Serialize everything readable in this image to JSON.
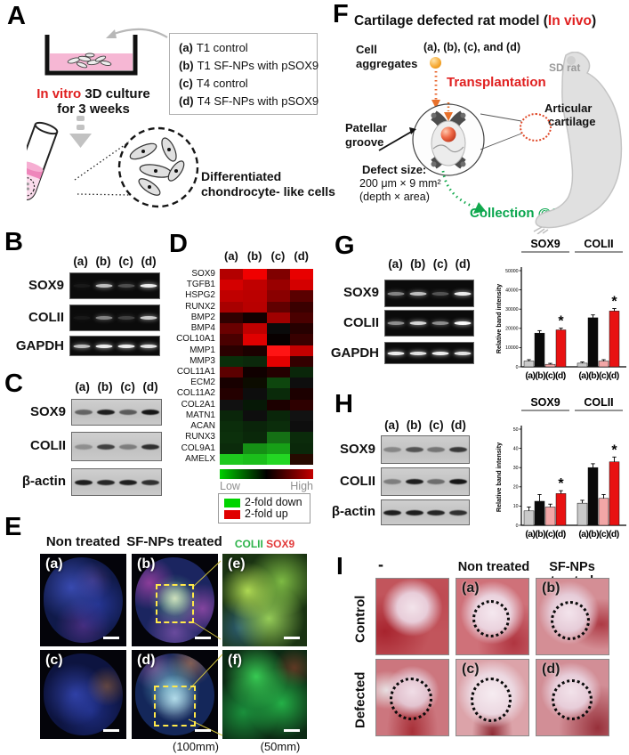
{
  "panelA": {
    "label": "A",
    "legend": [
      {
        "key": "(a)",
        "text": "T1 control"
      },
      {
        "key": "(b)",
        "text": "T1 SF-NPs with pSOX9"
      },
      {
        "key": "(c)",
        "text": "T4 control"
      },
      {
        "key": "(d)",
        "text": "T4 SF-NPs with pSOX9"
      }
    ],
    "invitro_red": "In vitro",
    "invitro_black": " 3D culture",
    "culture_line2": "for 3 weeks",
    "diff1": "Differentiated",
    "diff2": "chondrocyte- like cells"
  },
  "panelB": {
    "label": "B",
    "lanes": [
      "(a)",
      "(b)",
      "(c)",
      "(d)"
    ],
    "rows": [
      {
        "name": "SOX9",
        "bands": [
          0.06,
          0.75,
          0.28,
          0.95
        ]
      },
      {
        "name": "COLII",
        "bands": [
          0.05,
          0.5,
          0.22,
          0.8
        ]
      },
      {
        "name": "GAPDH",
        "bands": [
          0.75,
          0.95,
          0.95,
          0.9
        ]
      }
    ]
  },
  "panelC": {
    "label": "C",
    "lanes": [
      "(a)",
      "(b)",
      "(c)",
      "(d)"
    ],
    "rows": [
      {
        "name": "SOX9",
        "bands": [
          0.55,
          0.95,
          0.6,
          1
        ]
      },
      {
        "name": "COLII",
        "bands": [
          0.3,
          0.75,
          0.4,
          0.85
        ]
      },
      {
        "name": "β-actin",
        "bands": [
          0.95,
          0.9,
          0.95,
          0.85
        ]
      }
    ]
  },
  "panelD": {
    "label": "D",
    "lanes": [
      "(a)",
      "(b)",
      "(c)",
      "(d)"
    ],
    "genes": [
      "SOX9",
      "TGFB1",
      "HSPG2",
      "RUNX2",
      "BMP2",
      "BMP4",
      "COL10A1",
      "MMP1",
      "MMP3",
      "COL11A1",
      "ECM2",
      "COL11A2",
      "COL2A1",
      "MATN1",
      "ACAN",
      "RUNX3",
      "COL9A1",
      "AMELX"
    ],
    "cells": [
      [
        "#b30000",
        "#f00000",
        "#800000",
        "#e80000"
      ],
      [
        "#d40000",
        "#c00000",
        "#990000",
        "#d40000"
      ],
      [
        "#c00000",
        "#bb0000",
        "#8a0000",
        "#5a0000"
      ],
      [
        "#a80000",
        "#b80000",
        "#600000",
        "#3a0000"
      ],
      [
        "#300000",
        "#120000",
        "#a00000",
        "#4a0000"
      ],
      [
        "#6a0000",
        "#c00000",
        "#0a0a0a",
        "#260000"
      ],
      [
        "#4a0000",
        "#e00000",
        "#080000",
        "#380000"
      ],
      [
        "#2a0000",
        "#1c0000",
        "#ff1414",
        "#c40000"
      ],
      [
        "#0a2e0a",
        "#0b280b",
        "#e60000",
        "#330000"
      ],
      [
        "#5c0000",
        "#100000",
        "#240000",
        "#0a260a"
      ],
      [
        "#180000",
        "#0c0c00",
        "#0e460e",
        "#0e0e0e"
      ],
      [
        "#240000",
        "#0d0d0d",
        "#0a2a0a",
        "#1c0000"
      ],
      [
        "#111111",
        "#061806",
        "#1c0000",
        "#2e0000"
      ],
      [
        "#0a260a",
        "#0e0e0e",
        "#0a260a",
        "#121212"
      ],
      [
        "#0b2d0b",
        "#0a240a",
        "#0b2d0b",
        "#0e0e0e"
      ],
      [
        "#0c300c",
        "#0a280a",
        "#157015",
        "#0b2b0b"
      ],
      [
        "#0b2b0b",
        "#159015",
        "#17a017",
        "#0a280a"
      ],
      [
        "#1ec81e",
        "#1bbf1b",
        "#23d723",
        "#260a00"
      ]
    ],
    "scale_low": "Low",
    "scale_high": "High",
    "legend_down": "2-fold down",
    "legend_up": "2-fold up"
  },
  "panelE": {
    "label": "E",
    "col1": "Non treated",
    "col2": "SF-NPs treated",
    "stain1": "COLII",
    "stain2": "SOX9",
    "images": [
      "(a)",
      "(b)",
      "(e)",
      "(c)",
      "(d)",
      "(f)"
    ],
    "scale1": "(100mm)",
    "scale2": "(50mm)"
  },
  "panelF": {
    "label": "F",
    "title_pre": "Cartilage defected rat model (",
    "title_red": "In vivo",
    "title_post": ")",
    "cell1": "Cell",
    "cell2": "aggregates",
    "groups": "(a), (b), (c), and (d)",
    "transplant": "Transplantation",
    "sd_rat": "SD rat",
    "artic1": "Articular",
    "artic2": "cartilage",
    "pat1": "Patellar",
    "pat2": "groove",
    "defect_title": "Defect size:",
    "defect1": "200 μm × 9 mm²",
    "defect2": "(depth × area)",
    "collection": "Collection @6W"
  },
  "panelG": {
    "label": "G",
    "lanes": [
      "(a)",
      "(b)",
      "(c)",
      "(d)"
    ],
    "rows": [
      {
        "name": "SOX9",
        "bands": [
          0.5,
          0.75,
          0.3,
          0.95
        ]
      },
      {
        "name": "COLII",
        "bands": [
          0.55,
          0.85,
          0.55,
          1
        ]
      },
      {
        "name": "GAPDH",
        "bands": [
          0.95,
          0.9,
          0.95,
          0.9
        ]
      }
    ]
  },
  "panelH": {
    "label": "H",
    "lanes": [
      "(a)",
      "(b)",
      "(c)",
      "(d)"
    ],
    "rows": [
      {
        "name": "SOX9",
        "bands": [
          0.35,
          0.65,
          0.45,
          0.8
        ]
      },
      {
        "name": "COLII",
        "bands": [
          0.4,
          0.95,
          0.5,
          1
        ]
      },
      {
        "name": "β-actin",
        "bands": [
          0.95,
          0.95,
          0.9,
          0.85
        ]
      }
    ]
  },
  "panelI": {
    "label": "I",
    "col_headers": [
      "-",
      "Non treated",
      "SF-NPs treated"
    ],
    "row_headers": [
      "Control",
      "Defected"
    ],
    "letters": [
      "(a)",
      "(b)",
      "(c)",
      "(d)"
    ]
  },
  "chart_data": [
    {
      "id": "panelG_chart",
      "type": "bar",
      "group_titles": [
        "SOX9",
        "COLII"
      ],
      "categories": [
        "(a)",
        "(b)",
        "(c)",
        "(d)"
      ],
      "x_tick_text": "(a)(b)(c)(d)",
      "ylabel": "Relative band intensity",
      "ylim": [
        0,
        50000
      ],
      "yticks": [
        0,
        10000,
        20000,
        30000,
        40000,
        50000
      ],
      "bar_colors": [
        "#c9c9c9",
        "#0a0a0a",
        "#f2a6a6",
        "#e81212"
      ],
      "series": [
        {
          "name": "SOX9",
          "values": [
            3000,
            17500,
            1300,
            19200
          ],
          "errors": [
            700,
            1300,
            500,
            900
          ],
          "sig": [
            false,
            false,
            false,
            true
          ]
        },
        {
          "name": "COLII",
          "values": [
            1900,
            25500,
            3000,
            29000
          ],
          "errors": [
            600,
            1500,
            700,
            1300
          ],
          "sig": [
            false,
            false,
            false,
            true
          ]
        }
      ]
    },
    {
      "id": "panelH_chart",
      "type": "bar",
      "group_titles": [
        "SOX9",
        "COLII"
      ],
      "categories": [
        "(a)",
        "(b)",
        "(c)",
        "(d)"
      ],
      "x_tick_text": "(a)(b)(c)(d)",
      "ylabel": "Relative band intensity",
      "ylim": [
        0,
        50
      ],
      "yticks": [
        0,
        10,
        20,
        30,
        40,
        50
      ],
      "bar_colors": [
        "#c9c9c9",
        "#0a0a0a",
        "#f2a6a6",
        "#e81212"
      ],
      "series": [
        {
          "name": "SOX9",
          "values": [
            7.5,
            12.5,
            9.5,
            16.5
          ],
          "errors": [
            2,
            3.5,
            1.5,
            1.5
          ],
          "sig": [
            false,
            false,
            false,
            true
          ]
        },
        {
          "name": "COLII",
          "values": [
            11.5,
            30,
            14,
            33
          ],
          "errors": [
            1.5,
            2,
            2,
            2.5
          ],
          "sig": [
            false,
            false,
            false,
            true
          ]
        }
      ]
    }
  ]
}
